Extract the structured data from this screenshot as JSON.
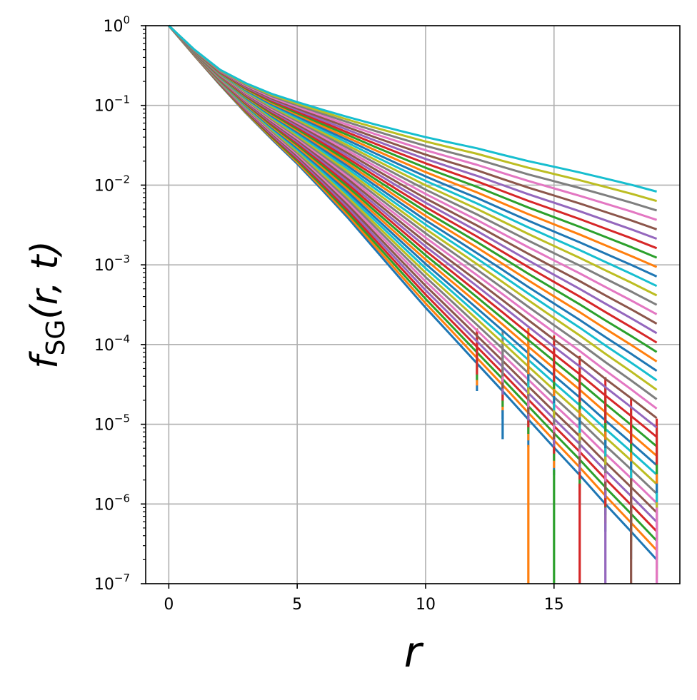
{
  "chart_data": {
    "type": "line",
    "xlabel": "r",
    "ylabel_main": "f",
    "ylabel_sub": "SG",
    "ylabel_args": "(r, t)",
    "yscale": "log",
    "xlim": [
      -0.9,
      19.9
    ],
    "ylim": [
      1e-07,
      1
    ],
    "x_ticks": [
      0,
      5,
      10,
      15
    ],
    "x_tick_labels": [
      "0",
      "5",
      "10",
      "15"
    ],
    "y_ticks": [
      1,
      0.1,
      0.01,
      0.001,
      0.0001,
      1e-05,
      1e-06,
      1e-07
    ],
    "y_tick_labels": [
      {
        "base": "10",
        "exp": "0"
      },
      {
        "base": "10",
        "exp": "−1"
      },
      {
        "base": "10",
        "exp": "−2"
      },
      {
        "base": "10",
        "exp": "−3"
      },
      {
        "base": "10",
        "exp": "−4"
      },
      {
        "base": "10",
        "exp": "−5"
      },
      {
        "base": "10",
        "exp": "−6"
      },
      {
        "base": "10",
        "exp": "−7"
      }
    ],
    "grid": true,
    "legend": "none",
    "palette": [
      "#1f77b4",
      "#ff7f0e",
      "#2ca02c",
      "#d62728",
      "#9467bd",
      "#8c564b",
      "#e377c2",
      "#7f7f7f",
      "#bcbd22",
      "#17becf"
    ],
    "x": [
      0,
      1,
      2,
      3,
      4,
      5,
      6,
      7,
      8,
      9,
      10,
      11,
      12,
      13,
      14,
      15,
      16,
      17,
      18,
      19
    ],
    "series_count": 40,
    "series_ends": [
      {
        "at_r": 5,
        "value": 0.02
      },
      {
        "at_r": 19,
        "value": 0.008
      }
    ],
    "representative_series": [
      {
        "color": "#1f77b4",
        "values": [
          1,
          0.42,
          0.18,
          0.08,
          0.038,
          0.0185,
          0.0085,
          0.0038,
          0.0016,
          0.00068,
          0.00029,
          0.00013,
          5.8e-05,
          2.6e-05,
          1.15e-05,
          5.1e-06,
          2.3e-06,
          1e-06,
          4.5e-07,
          2e-07
        ]
      },
      {
        "color": "#17becf",
        "values": [
          1,
          0.5,
          0.28,
          0.19,
          0.14,
          0.11,
          0.088,
          0.071,
          0.058,
          0.048,
          0.04,
          0.034,
          0.029,
          0.024,
          0.02,
          0.017,
          0.0144,
          0.0121,
          0.0101,
          0.0083
        ]
      }
    ],
    "error_bars_note_points": [
      {
        "r": 13,
        "low": 6.5e-06,
        "high": 1.5e-05
      },
      {
        "r": 14,
        "low": 1e-07,
        "high": 5.5e-06
      },
      {
        "r": 15,
        "low": 1e-07,
        "high": 2.7e-06
      },
      {
        "r": 16,
        "low": 1e-07,
        "high": 1.8e-06
      },
      {
        "r": 17,
        "low": 1e-07,
        "high": 9e-07
      },
      {
        "r": 18,
        "low": 1e-07,
        "high": 2.1e-06
      },
      {
        "r": 19,
        "low": 1e-07,
        "high": 9e-07
      }
    ]
  }
}
